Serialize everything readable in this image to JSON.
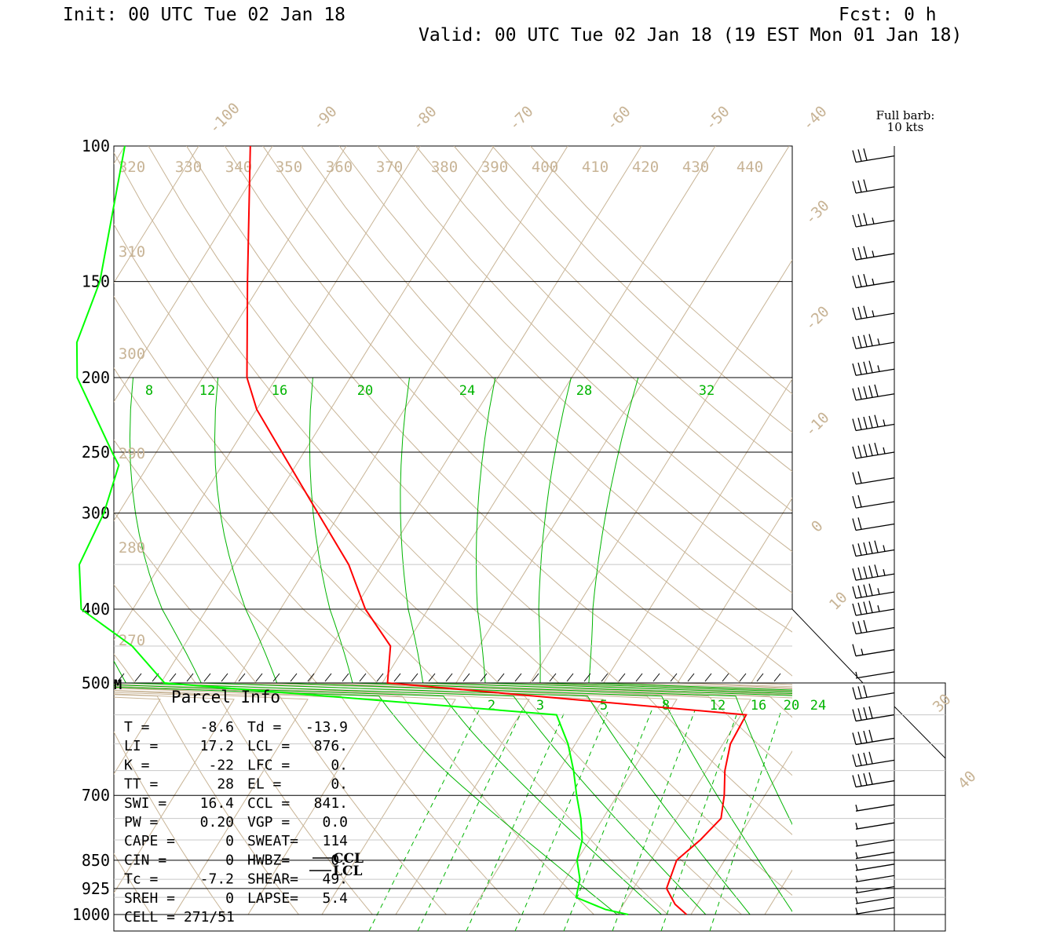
{
  "header": {
    "init": "Init: 00 UTC Tue 02 Jan 18",
    "fcst": "Fcst:    0 h",
    "valid": "Valid: 00 UTC Tue 02 Jan 18 (19 EST Mon 01 Jan 18)"
  },
  "barb_key": {
    "line1": "Full barb:",
    "line2": "10 kts"
  },
  "chart_data": {
    "type": "skew-t",
    "pressure_levels": [
      100,
      150,
      200,
      250,
      300,
      400,
      500,
      700,
      850,
      925,
      1000
    ],
    "pressure_labels": [
      "100",
      "150",
      "200",
      "250",
      "300",
      "400",
      "500",
      "700",
      "850",
      "925",
      "1000"
    ],
    "isotherm_labels": [
      "-100",
      "-90",
      "-80",
      "-70",
      "-60",
      "-50",
      "-40",
      "-30",
      "-20",
      "-10",
      "0",
      "10",
      "30",
      "40"
    ],
    "theta_labels": [
      "320",
      "330",
      "340",
      "350",
      "360",
      "370",
      "380",
      "390",
      "400",
      "410",
      "420",
      "430",
      "440",
      "310",
      "300",
      "290",
      "280",
      "270"
    ],
    "thetae_labels": [
      "8",
      "12",
      "16",
      "20",
      "24",
      "28",
      "32"
    ],
    "mixing_ratio_labels": [
      "2",
      "3",
      "5",
      "8",
      "12",
      "16",
      "20",
      "24"
    ],
    "temperature": {
      "color": "#ff0000",
      "points": [
        [
          1000,
          -0.6
        ],
        [
          970,
          -3
        ],
        [
          925,
          -5.5
        ],
        [
          850,
          -6.5
        ],
        [
          800,
          -5
        ],
        [
          750,
          -4
        ],
        [
          700,
          -5.5
        ],
        [
          650,
          -7.5
        ],
        [
          600,
          -9
        ],
        [
          550,
          -9.3
        ],
        [
          500,
          -9.3
        ],
        [
          450,
          -12
        ],
        [
          400,
          -18.5
        ],
        [
          350,
          -24.5
        ],
        [
          300,
          -33
        ],
        [
          250,
          -43
        ],
        [
          220,
          -50
        ],
        [
          200,
          -54
        ],
        [
          150,
          -62
        ],
        [
          100,
          -73
        ]
      ]
    },
    "dewpoint": {
      "color": "#00ff00",
      "points": [
        [
          1000,
          -8.5
        ],
        [
          985,
          -12
        ],
        [
          950,
          -17
        ],
        [
          900,
          -18
        ],
        [
          850,
          -20
        ],
        [
          800,
          -21
        ],
        [
          750,
          -23
        ],
        [
          700,
          -25.5
        ],
        [
          650,
          -28
        ],
        [
          600,
          -31
        ],
        [
          550,
          -35
        ],
        [
          500,
          -39.5
        ],
        [
          450,
          -47
        ],
        [
          400,
          -57
        ],
        [
          350,
          -61
        ],
        [
          300,
          -62
        ],
        [
          260,
          -64
        ],
        [
          250,
          -66
        ],
        [
          200,
          -77
        ],
        [
          180,
          -80
        ],
        [
          150,
          -82
        ],
        [
          100,
          -90
        ]
      ]
    },
    "wind_barbs": [
      {
        "p": 103,
        "kt": 30
      },
      {
        "p": 113,
        "kt": 30
      },
      {
        "p": 125,
        "kt": 35
      },
      {
        "p": 138,
        "kt": 35
      },
      {
        "p": 150,
        "kt": 35
      },
      {
        "p": 165,
        "kt": 35
      },
      {
        "p": 180,
        "kt": 45
      },
      {
        "p": 195,
        "kt": 45
      },
      {
        "p": 210,
        "kt": 50
      },
      {
        "p": 230,
        "kt": 55
      },
      {
        "p": 250,
        "kt": 55
      },
      {
        "p": 270,
        "kt": 20
      },
      {
        "p": 290,
        "kt": 20
      },
      {
        "p": 310,
        "kt": 20
      },
      {
        "p": 335,
        "kt": 55
      },
      {
        "p": 360,
        "kt": 55
      },
      {
        "p": 380,
        "kt": 45
      },
      {
        "p": 400,
        "kt": 45
      },
      {
        "p": 425,
        "kt": 30
      },
      {
        "p": 455,
        "kt": 15
      },
      {
        "p": 485,
        "kt": 5
      },
      {
        "p": 515,
        "kt": 30
      },
      {
        "p": 550,
        "kt": 40
      },
      {
        "p": 590,
        "kt": 40
      },
      {
        "p": 630,
        "kt": 40
      },
      {
        "p": 670,
        "kt": 40
      },
      {
        "p": 720,
        "kt": 5
      },
      {
        "p": 760,
        "kt": 5
      },
      {
        "p": 800,
        "kt": 5
      },
      {
        "p": 830,
        "kt": 5
      },
      {
        "p": 860,
        "kt": 5
      },
      {
        "p": 890,
        "kt": 5
      },
      {
        "p": 920,
        "kt": 5
      },
      {
        "p": 950,
        "kt": 5
      },
      {
        "p": 980,
        "kt": 5
      }
    ],
    "markers": {
      "ccl": "CCL",
      "lcl": "LCL",
      "m": "M"
    }
  },
  "parcel_info": {
    "title": "Parcel Info",
    "rows": [
      [
        "T  =",
        "-8.6",
        "Td =",
        "-13.9"
      ],
      [
        "LI =",
        "17.2",
        "LCL =",
        "876."
      ],
      [
        "K  =",
        "-22",
        "LFC =",
        "0."
      ],
      [
        "TT =",
        "28",
        "EL  =",
        "0."
      ],
      [
        "SWI =",
        "16.4",
        "CCL =",
        "841."
      ],
      [
        "PW =",
        "0.20",
        "VGP =",
        "0.0"
      ],
      [
        "CAPE =",
        "0",
        "SWEAT=",
        "114"
      ],
      [
        "CIN =",
        "0",
        "HWBZ=",
        "0."
      ],
      [
        "Tc =",
        "-7.2",
        "SHEAR=",
        "49."
      ],
      [
        "SREH =",
        "0",
        "LAPSE=",
        "5.4"
      ],
      [
        "CELL = 271/51",
        "",
        "",
        ""
      ]
    ]
  }
}
